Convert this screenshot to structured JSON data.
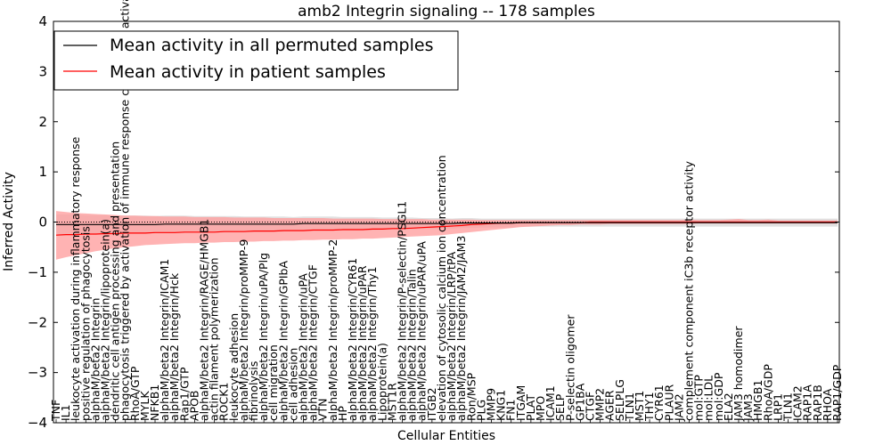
{
  "chart_data": {
    "type": "line",
    "title": "amb2 Integrin signaling -- 178 samples",
    "xlabel": "Cellular Entities",
    "ylabel": "Inferred Activity",
    "ylim": [
      -4,
      4
    ],
    "yticks": [
      -4,
      -3,
      -2,
      -1,
      0,
      1,
      2,
      3,
      4
    ],
    "legend_position": "top-left",
    "categories": [
      "TNF",
      "IL1",
      "leukocyte activation during inflammatory response",
      "positive regulation of phagocytosis",
      "alphaM/beta2 Integrin",
      "alphaM/beta2 Integrin/lipoprotein(a)",
      "dendritic cell antigen processing and presentation",
      "phagocytosis triggered by activation of immune response cell surface activating receptor",
      "RhoA/GTP",
      "MYLK",
      "NFKB1",
      "alphaM/beta2 Integrin/ICAM1",
      "alphaM/beta2 Integrin/Hck",
      "Rap1/GTP",
      "APOB",
      "alphaM/beta2 Integrin/RAGE/HMGB1",
      "actin filament polymerization",
      "ROCK1",
      "leukocyte adhesion",
      "alphaM/beta2 Integrin/proMMP-9",
      "fibrinolysis",
      "alphaM/beta2 Integrin/uPA/Plg",
      "cell migration",
      "alphaM/beta2 Integrin/GPIbA",
      "cell adhesion",
      "alphaM/beta2 Integrin/uPA",
      "alphaM/beta2 Integrin/CTGF",
      "VTN",
      "alphaM/beta2 Integrin/proMMP-2",
      "HP",
      "alphaM/beta2 Integrin/CYR61",
      "alphaM/beta2 Integrin/uPAR",
      "alphaM/beta2 Integrin/Thy1",
      "Lipoprotein(a)",
      "MST1R",
      "alphaM/beta2 Integrin/P-selectin/PSGL1",
      "alphaM/beta2 Integrin/Talin",
      "alphaM/beta2 Integrin/uPAR/uPA",
      "ITGB2",
      "elevation of cytosolic calcium ion concentration",
      "alphaM/beta2 Integrin/LRP/tPA",
      "alphaM/beta2 Integrin/JAM2/JAM3",
      "Ron/MSP",
      "PLG",
      "MMP9",
      "KNG1",
      "FN1",
      "ITGAM",
      "PLAT",
      "MPO",
      "ICAM1",
      "SELP",
      "P-selectin oligomer",
      "GP1BA",
      "CTGF",
      "MMP2",
      "AGER",
      "SELPLG",
      "TLN1",
      "MST1",
      "THY1",
      "CYR61",
      "PLAUR",
      "JAM2",
      "complement component iC3b receptor activity",
      "mol:GTP",
      "mol:LDL",
      "mol:GDP",
      "ELA2",
      "JAM3 homodimer",
      "JAM3",
      "HMGB1",
      "RhoA/GDP",
      "LRP1",
      "TLN1",
      "ICAM2",
      "RAP1A",
      "RAP1B",
      "RHOA",
      "RAP1/GDP"
    ],
    "series": [
      {
        "name": "Mean activity in all permuted samples",
        "color": "#000000",
        "band_color": "#c8c8c8",
        "mean": [
          -0.05,
          -0.05,
          -0.05,
          -0.05,
          -0.05,
          -0.05,
          -0.05,
          -0.05,
          -0.05,
          -0.05,
          -0.05,
          -0.04,
          -0.04,
          -0.04,
          -0.04,
          -0.04,
          -0.04,
          -0.04,
          -0.04,
          -0.04,
          -0.04,
          -0.04,
          -0.04,
          -0.04,
          -0.04,
          -0.03,
          -0.03,
          -0.03,
          -0.03,
          -0.03,
          -0.03,
          -0.03,
          -0.03,
          -0.03,
          -0.03,
          -0.03,
          -0.03,
          -0.03,
          -0.03,
          -0.03,
          -0.03,
          -0.02,
          -0.02,
          -0.02,
          -0.02,
          -0.02,
          -0.02,
          -0.01,
          -0.01,
          -0.01,
          -0.01,
          -0.01,
          -0.01,
          -0.01,
          -0.01,
          -0.01,
          -0.01,
          -0.01,
          -0.01,
          -0.01,
          -0.01,
          -0.01,
          -0.01,
          -0.01,
          -0.01,
          -0.01,
          -0.01,
          -0.01,
          -0.01,
          -0.01,
          -0.01,
          -0.01,
          -0.01,
          -0.01,
          -0.01,
          -0.01,
          -0.01,
          -0.01,
          -0.01,
          -0.01
        ],
        "band": [
          0.2,
          0.2,
          0.2,
          0.19,
          0.19,
          0.19,
          0.18,
          0.18,
          0.18,
          0.18,
          0.17,
          0.17,
          0.17,
          0.17,
          0.16,
          0.16,
          0.16,
          0.16,
          0.16,
          0.15,
          0.15,
          0.15,
          0.15,
          0.15,
          0.14,
          0.14,
          0.14,
          0.14,
          0.14,
          0.13,
          0.13,
          0.13,
          0.13,
          0.12,
          0.12,
          0.12,
          0.12,
          0.11,
          0.11,
          0.11,
          0.1,
          0.1,
          0.1,
          0.09,
          0.09,
          0.09,
          0.09,
          0.08,
          0.08,
          0.08,
          0.08,
          0.08,
          0.08,
          0.08,
          0.08,
          0.08,
          0.08,
          0.08,
          0.08,
          0.08,
          0.08,
          0.08,
          0.08,
          0.08,
          0.08,
          0.08,
          0.08,
          0.08,
          0.08,
          0.08,
          0.08,
          0.08,
          0.08,
          0.08,
          0.08,
          0.08,
          0.08,
          0.08,
          0.08,
          0.08
        ]
      },
      {
        "name": "Mean activity in patient samples",
        "color": "#ff0000",
        "band_color": "#ff9a9a",
        "mean": [
          -0.26,
          -0.25,
          -0.25,
          -0.24,
          -0.24,
          -0.23,
          -0.23,
          -0.22,
          -0.22,
          -0.22,
          -0.21,
          -0.21,
          -0.21,
          -0.2,
          -0.2,
          -0.2,
          -0.2,
          -0.19,
          -0.19,
          -0.19,
          -0.18,
          -0.18,
          -0.18,
          -0.17,
          -0.17,
          -0.17,
          -0.16,
          -0.16,
          -0.16,
          -0.15,
          -0.15,
          -0.15,
          -0.14,
          -0.14,
          -0.13,
          -0.13,
          -0.12,
          -0.11,
          -0.1,
          -0.09,
          -0.08,
          -0.07,
          -0.05,
          -0.04,
          -0.03,
          -0.02,
          -0.02,
          -0.01,
          -0.01,
          -0.01,
          -0.01,
          -0.01,
          -0.01,
          -0.01,
          0.0,
          0.0,
          0.0,
          0.0,
          0.0,
          0.0,
          0.0,
          0.0,
          0.0,
          0.0,
          0.0,
          0.0,
          0.0,
          0.0,
          0.0,
          0.0,
          0.0,
          0.0,
          0.0,
          0.0,
          0.0,
          0.0,
          0.0,
          0.0,
          0.0,
          0.0
        ],
        "lower": [
          -0.75,
          -0.7,
          -0.66,
          -0.62,
          -0.58,
          -0.55,
          -0.52,
          -0.5,
          -0.48,
          -0.46,
          -0.45,
          -0.44,
          -0.43,
          -0.42,
          -0.42,
          -0.41,
          -0.41,
          -0.4,
          -0.4,
          -0.39,
          -0.39,
          -0.38,
          -0.38,
          -0.37,
          -0.37,
          -0.36,
          -0.36,
          -0.35,
          -0.35,
          -0.34,
          -0.34,
          -0.33,
          -0.33,
          -0.32,
          -0.31,
          -0.3,
          -0.29,
          -0.28,
          -0.27,
          -0.26,
          -0.24,
          -0.22,
          -0.2,
          -0.18,
          -0.16,
          -0.14,
          -0.12,
          -0.1,
          -0.09,
          -0.08,
          -0.07,
          -0.06,
          -0.06,
          -0.05,
          -0.05,
          -0.05,
          -0.04,
          -0.04,
          -0.04,
          -0.04,
          -0.04,
          -0.04,
          -0.04,
          -0.04,
          -0.04,
          -0.03,
          -0.03,
          -0.03,
          -0.03,
          -0.03,
          -0.03,
          -0.03,
          -0.03,
          -0.03,
          -0.03,
          -0.03,
          -0.03,
          -0.03,
          -0.03,
          -0.03
        ],
        "upper": [
          0.22,
          0.2,
          0.18,
          0.17,
          0.16,
          0.15,
          0.14,
          0.13,
          0.13,
          0.12,
          0.12,
          0.11,
          0.11,
          0.11,
          0.1,
          0.1,
          0.1,
          0.1,
          0.09,
          0.09,
          0.09,
          0.09,
          0.08,
          0.08,
          0.08,
          0.08,
          0.08,
          0.08,
          0.07,
          0.07,
          0.07,
          0.07,
          0.07,
          0.06,
          0.06,
          0.06,
          0.06,
          0.06,
          0.05,
          0.05,
          0.05,
          0.05,
          0.05,
          0.04,
          0.04,
          0.04,
          0.04,
          0.04,
          0.04,
          0.04,
          0.04,
          0.04,
          0.04,
          0.04,
          0.04,
          0.04,
          0.04,
          0.04,
          0.04,
          0.04,
          0.04,
          0.04,
          0.04,
          0.04,
          0.05,
          0.04,
          0.04,
          0.04,
          0.05,
          0.06,
          0.04,
          0.04,
          0.05,
          0.03,
          0.03,
          0.03,
          0.03,
          0.03,
          0.03,
          0.03
        ]
      }
    ]
  }
}
